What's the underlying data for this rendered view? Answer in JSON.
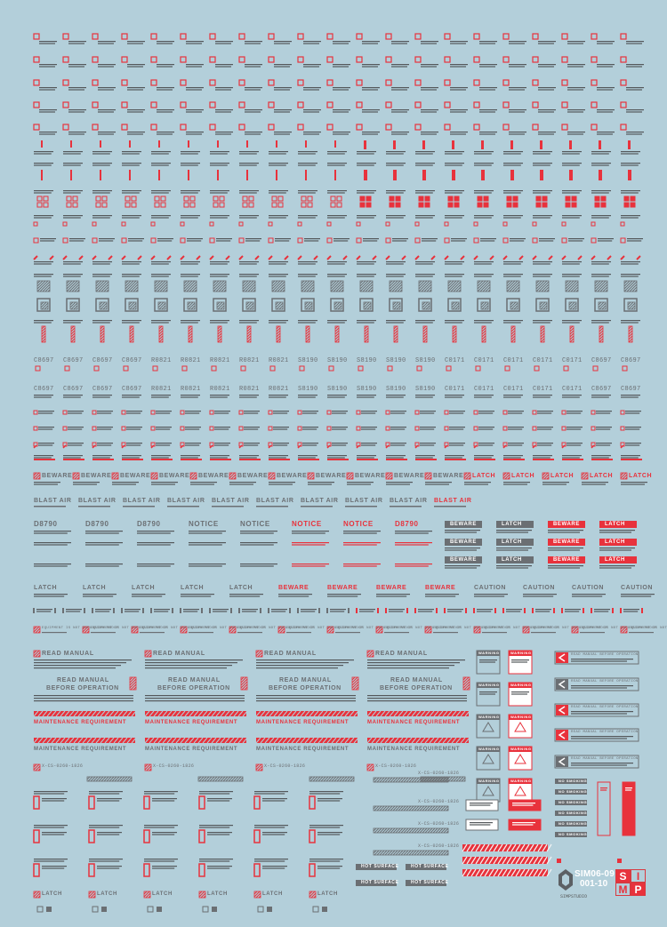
{
  "colors": {
    "background": "#b3cfda",
    "red": "#e8323c",
    "gray": "#6b6f73",
    "dark": "#55595c",
    "white": "#ffffff"
  },
  "micro_text": "WARNING NOT OPERATE",
  "rows": {
    "beware_latch": [
      "BEWARE",
      "BEWARE",
      "BEWARE",
      "BEWARE",
      "BEWARE",
      "BEWARE",
      "BEWARE",
      "BEWARE",
      "BEWARE",
      "BEWARE",
      "BEWARE",
      "LATCH",
      "LATCH",
      "LATCH",
      "LATCH",
      "LATCH"
    ],
    "blast_air": [
      "BLAST AIR",
      "BLAST AIR",
      "BLAST AIR",
      "BLAST AIR",
      "BLAST AIR",
      "BLAST AIR",
      "BLAST AIR",
      "BLAST AIR",
      "BLAST AIR",
      "BLAST AIR"
    ],
    "notice_row": [
      "D8790",
      "D8790",
      "D8790",
      "NOTICE",
      "NOTICE",
      "NOTICE",
      "NOTICE",
      "D8790"
    ],
    "panel_labels": [
      "BEWARE",
      "LATCH",
      "BEWARE",
      "LATCH"
    ],
    "latch_beware_caution": [
      "LATCH",
      "LATCH",
      "LATCH",
      "LATCH",
      "LATCH",
      "BEWARE",
      "BEWARE",
      "BEWARE",
      "BEWARE",
      "CAUTION",
      "CAUTION",
      "CAUTION",
      "CAUTION"
    ],
    "codes_a": [
      "C8697",
      "C8697",
      "C8697",
      "C8697",
      "R0821",
      "R0821",
      "R0821",
      "R0821",
      "R0821",
      "S8190",
      "S8190",
      "S8190",
      "S8190",
      "S8190",
      "C0171",
      "C0171",
      "C0171",
      "C0171",
      "C0171"
    ],
    "equipment": "EQUIPMENT IS NOT EXPLOSION PROOF",
    "read_manual": "READ MANUAL",
    "before_operation": "BEFORE OPERATION",
    "maintenance": "MAINTENANCE REQUIREMENT",
    "xcs_code": "X-CS-0260-1826",
    "hot_surface": "HOT SURFACE",
    "warning": "WARNING",
    "no_smoking": "NO SMOKING",
    "read_manual_long": "READ MANUAL BEFORE OPERATION"
  },
  "brand": {
    "code_line1": "SIM06-09",
    "code_line2": "001-10",
    "studio": "SIMPSTUDIO",
    "simp": [
      "S",
      "I",
      "M",
      "P"
    ]
  }
}
